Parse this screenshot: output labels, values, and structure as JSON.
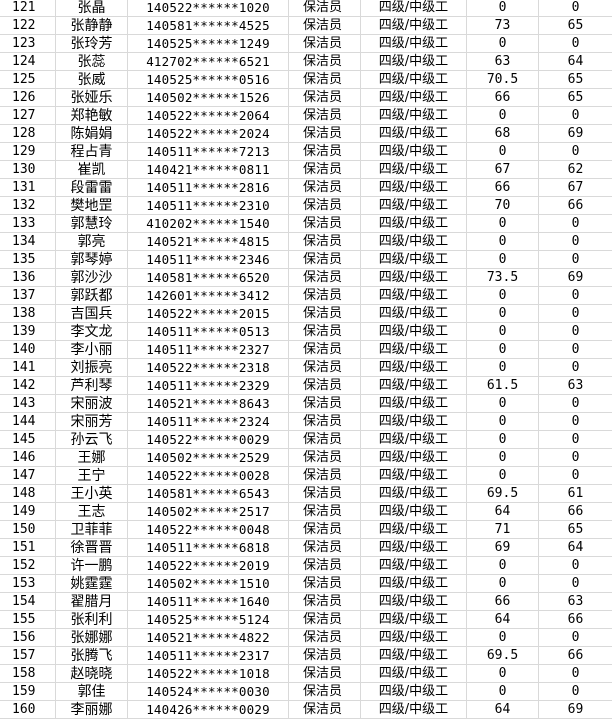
{
  "rows": [
    [
      "121",
      "张晶",
      "140522******1020",
      "保洁员",
      "四级/中级工",
      "0",
      "0"
    ],
    [
      "122",
      "张静静",
      "140581******4525",
      "保洁员",
      "四级/中级工",
      "73",
      "65"
    ],
    [
      "123",
      "张玲芳",
      "140525******1249",
      "保洁员",
      "四级/中级工",
      "0",
      "0"
    ],
    [
      "124",
      "张蕊",
      "412702******6521",
      "保洁员",
      "四级/中级工",
      "63",
      "64"
    ],
    [
      "125",
      "张威",
      "140525******0516",
      "保洁员",
      "四级/中级工",
      "70.5",
      "65"
    ],
    [
      "126",
      "张娅乐",
      "140502******1526",
      "保洁员",
      "四级/中级工",
      "66",
      "65"
    ],
    [
      "127",
      "郑艳敏",
      "140522******2064",
      "保洁员",
      "四级/中级工",
      "0",
      "0"
    ],
    [
      "128",
      "陈娟娟",
      "140522******2024",
      "保洁员",
      "四级/中级工",
      "68",
      "69"
    ],
    [
      "129",
      "程占青",
      "140511******7213",
      "保洁员",
      "四级/中级工",
      "0",
      "0"
    ],
    [
      "130",
      "崔凯",
      "140421******0811",
      "保洁员",
      "四级/中级工",
      "67",
      "62"
    ],
    [
      "131",
      "段雷雷",
      "140511******2816",
      "保洁员",
      "四级/中级工",
      "66",
      "67"
    ],
    [
      "132",
      "樊地罡",
      "140511******2310",
      "保洁员",
      "四级/中级工",
      "70",
      "66"
    ],
    [
      "133",
      "郭慧玲",
      "410202******1540",
      "保洁员",
      "四级/中级工",
      "0",
      "0"
    ],
    [
      "134",
      "郭亮",
      "140521******4815",
      "保洁员",
      "四级/中级工",
      "0",
      "0"
    ],
    [
      "135",
      "郭琴婷",
      "140511******2346",
      "保洁员",
      "四级/中级工",
      "0",
      "0"
    ],
    [
      "136",
      "郭沙沙",
      "140581******6520",
      "保洁员",
      "四级/中级工",
      "73.5",
      "69"
    ],
    [
      "137",
      "郭跃都",
      "142601******3412",
      "保洁员",
      "四级/中级工",
      "0",
      "0"
    ],
    [
      "138",
      "吉国兵",
      "140522******2015",
      "保洁员",
      "四级/中级工",
      "0",
      "0"
    ],
    [
      "139",
      "李文龙",
      "140511******0513",
      "保洁员",
      "四级/中级工",
      "0",
      "0"
    ],
    [
      "140",
      "李小丽",
      "140511******2327",
      "保洁员",
      "四级/中级工",
      "0",
      "0"
    ],
    [
      "141",
      "刘振亮",
      "140522******2318",
      "保洁员",
      "四级/中级工",
      "0",
      "0"
    ],
    [
      "142",
      "芦利琴",
      "140511******2329",
      "保洁员",
      "四级/中级工",
      "61.5",
      "63"
    ],
    [
      "143",
      "宋丽波",
      "140521******8643",
      "保洁员",
      "四级/中级工",
      "0",
      "0"
    ],
    [
      "144",
      "宋丽芳",
      "140511******2324",
      "保洁员",
      "四级/中级工",
      "0",
      "0"
    ],
    [
      "145",
      "孙云飞",
      "140522******0029",
      "保洁员",
      "四级/中级工",
      "0",
      "0"
    ],
    [
      "146",
      "王娜",
      "140502******2529",
      "保洁员",
      "四级/中级工",
      "0",
      "0"
    ],
    [
      "147",
      "王宁",
      "140522******0028",
      "保洁员",
      "四级/中级工",
      "0",
      "0"
    ],
    [
      "148",
      "王小英",
      "140581******6543",
      "保洁员",
      "四级/中级工",
      "69.5",
      "61"
    ],
    [
      "149",
      "王志",
      "140502******2517",
      "保洁员",
      "四级/中级工",
      "64",
      "66"
    ],
    [
      "150",
      "卫菲菲",
      "140522******0048",
      "保洁员",
      "四级/中级工",
      "71",
      "65"
    ],
    [
      "151",
      "徐晋晋",
      "140511******6818",
      "保洁员",
      "四级/中级工",
      "69",
      "64"
    ],
    [
      "152",
      "许一鹏",
      "140522******2019",
      "保洁员",
      "四级/中级工",
      "0",
      "0"
    ],
    [
      "153",
      "姚霆霆",
      "140502******1510",
      "保洁员",
      "四级/中级工",
      "0",
      "0"
    ],
    [
      "154",
      "翟腊月",
      "140511******1640",
      "保洁员",
      "四级/中级工",
      "66",
      "63"
    ],
    [
      "155",
      "张利利",
      "140525******5124",
      "保洁员",
      "四级/中级工",
      "64",
      "66"
    ],
    [
      "156",
      "张娜娜",
      "140521******4822",
      "保洁员",
      "四级/中级工",
      "0",
      "0"
    ],
    [
      "157",
      "张腾飞",
      "140511******2317",
      "保洁员",
      "四级/中级工",
      "69.5",
      "66"
    ],
    [
      "158",
      "赵晓晓",
      "140522******1018",
      "保洁员",
      "四级/中级工",
      "0",
      "0"
    ],
    [
      "159",
      "郭佳",
      "140524******0030",
      "保洁员",
      "四级/中级工",
      "0",
      "0"
    ],
    [
      "160",
      "李丽娜",
      "140426******0029",
      "保洁员",
      "四级/中级工",
      "64",
      "69"
    ]
  ],
  "grid_color": "#d9d9d9"
}
